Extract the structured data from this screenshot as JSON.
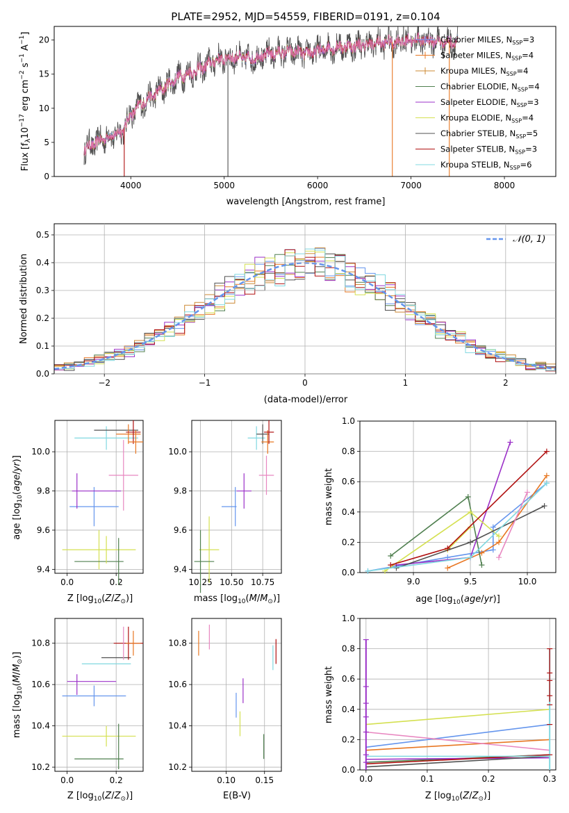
{
  "palette": [
    "#6495ed",
    "#e87722",
    "#cc8833",
    "#4f7f4f",
    "#9b30c8",
    "#d4e050",
    "#505050",
    "#b01010",
    "#80d8e0",
    "#e886c0"
  ],
  "chart_data": [
    {
      "id": "spectrum",
      "type": "line",
      "title": "PLATE=2952, MJD=54559, FIBERID=0191, z=0.104",
      "xlabel": "wavelength [Angstrom, rest frame]",
      "ylabel": "Flux [fλ10⁻¹⁷ erg cm⁻² s⁻¹ A⁻¹]",
      "xlim": [
        3180,
        8550
      ],
      "ylim": [
        0,
        22
      ],
      "xticks": [
        "4000",
        "5000",
        "6000",
        "7000",
        "8000"
      ],
      "yticks": [
        "0",
        "5",
        "10",
        "15",
        "20"
      ],
      "continuum": {
        "x": [
          3500,
          3700,
          3900,
          4000,
          4100,
          4300,
          4500,
          4700,
          4900,
          5100,
          5300,
          5500,
          5700,
          5900,
          6100,
          6300,
          6500,
          6700,
          6900,
          7100,
          7300,
          7500
        ],
        "y": [
          4.0,
          5.5,
          6.5,
          9,
          10.5,
          12.5,
          14.5,
          15.5,
          17,
          17.5,
          17.3,
          18,
          18.3,
          18,
          18.8,
          19,
          19.3,
          19.6,
          19.8,
          20,
          19.8,
          19.7
        ]
      },
      "spikes": [
        {
          "x": 3930,
          "y": 0
        },
        {
          "x": 5040,
          "y": 0
        },
        {
          "x": 6800,
          "y": 0
        },
        {
          "x": 7410,
          "y": 0
        },
        {
          "x": 6920,
          "y": 24
        },
        {
          "x": 7290,
          "y": 22
        }
      ],
      "legend": [
        "Chabrier MILES, N_SSP=3",
        "Salpeter MILES, N_SSP=4",
        "Kroupa MILES, N_SSP=4",
        "Chabrier ELODIE, N_SSP=4",
        "Salpeter ELODIE, N_SSP=3",
        "Kroupa ELODIE, N_SSP=4",
        "Chabrier STELIB, N_SSP=5",
        "Salpeter STELIB, N_SSP=3",
        "Kroupa STELIB, N_SSP=6"
      ]
    },
    {
      "id": "residuals",
      "type": "line",
      "xlabel": "(data-model)/error",
      "ylabel": "Normed distribution",
      "xlim": [
        -2.5,
        2.5
      ],
      "ylim": [
        0,
        0.54
      ],
      "xticks": [
        "−2",
        "−1",
        "0",
        "1",
        "2"
      ],
      "yticks": [
        "0.0",
        "0.1",
        "0.2",
        "0.3",
        "0.4",
        "0.5"
      ],
      "legend": "N(0,1)",
      "bin_width": 0.1
    },
    {
      "id": "age-Z",
      "type": "scatter",
      "xlabel": "Z [log₁₀(Z/Z⊙)]",
      "ylabel": "age  [log₁₀(age/yr)]",
      "xlim": [
        -0.05,
        0.31
      ],
      "ylim": [
        9.38,
        10.16
      ],
      "xticks": [
        "0.0",
        "0.2"
      ],
      "yticks": [
        "9.4",
        "9.6",
        "9.8",
        "10.0"
      ]
    },
    {
      "id": "age-mass",
      "type": "scatter",
      "xlabel": "mass [log₁₀(M/M⊙)]",
      "xlim": [
        10.18,
        10.9
      ],
      "ylim": [
        9.38,
        10.16
      ],
      "xticks": [
        "10.25",
        "10.50",
        "10.75"
      ],
      "yticks": [
        "9.4",
        "9.6",
        "9.8",
        "10.0"
      ]
    },
    {
      "id": "weight-age",
      "type": "line",
      "xlabel": "age  [log₁₀(age/yr)]",
      "ylabel": "mass weight",
      "xlim": [
        8.53,
        10.25
      ],
      "ylim": [
        0,
        1
      ],
      "xticks": [
        "9.0",
        "9.5",
        "10.0"
      ],
      "yticks": [
        "0.0",
        "0.2",
        "0.4",
        "0.6",
        "0.8",
        "1.0"
      ],
      "series": [
        {
          "x": [
            8.6,
            9.3,
            9.7,
            9.7,
            10.17
          ],
          "y": [
            0.01,
            0.1,
            0.15,
            0.3,
            0.59
          ]
        },
        {
          "x": [
            9.3,
            9.6,
            9.75,
            10.17
          ],
          "y": [
            0.03,
            0.13,
            0.2,
            0.64
          ]
        },
        {
          "x": [
            9.3,
            9.5
          ],
          "y": [
            0.15,
            0.3
          ]
        },
        {
          "x": [
            8.8,
            9.48,
            9.6
          ],
          "y": [
            0.11,
            0.5,
            0.05
          ]
        },
        {
          "x": [
            8.85,
            9.5,
            9.85
          ],
          "y": [
            0.05,
            0.1,
            0.86
          ]
        },
        {
          "x": [
            8.75,
            9.5,
            9.75
          ],
          "y": [
            0.01,
            0.4,
            0.24
          ]
        },
        {
          "x": [
            8.85,
            9.5,
            10.15
          ],
          "y": [
            0.03,
            0.2,
            0.44
          ]
        },
        {
          "x": [
            8.8,
            9.3,
            10.17
          ],
          "y": [
            0.05,
            0.16,
            0.8
          ]
        },
        {
          "x": [
            8.6,
            9.5,
            10.17
          ],
          "y": [
            0.01,
            0.1,
            0.59
          ]
        },
        {
          "x": [
            9.75,
            10.0
          ],
          "y": [
            0.1,
            0.53
          ]
        }
      ]
    },
    {
      "id": "mass-Z",
      "type": "scatter",
      "xlabel": "Z [log₁₀(Z/Z⊙)]",
      "ylabel": "mass [log₁₀(M/M⊙)]",
      "xlim": [
        -0.05,
        0.31
      ],
      "ylim": [
        10.18,
        10.92
      ],
      "xticks": [
        "0.0",
        "0.2"
      ],
      "yticks": [
        "10.2",
        "10.4",
        "10.6",
        "10.8"
      ]
    },
    {
      "id": "mass-EBV",
      "type": "scatter",
      "xlabel": "E(B-V)",
      "xlim": [
        0.055,
        0.172
      ],
      "ylim": [
        10.18,
        10.92
      ],
      "xticks": [
        "0.10",
        "0.15"
      ],
      "yticks": [
        "10.2",
        "10.4",
        "10.6",
        "10.8"
      ]
    },
    {
      "id": "weight-Z",
      "type": "line",
      "xlabel": "Z [log₁₀(Z/Z⊙)]",
      "ylabel": "mass weight",
      "xlim": [
        -0.01,
        0.31
      ],
      "ylim": [
        0,
        1
      ],
      "xticks": [
        "0.0",
        "0.1",
        "0.2",
        "0.3"
      ],
      "yticks": [
        "0.0",
        "0.2",
        "0.4",
        "0.6",
        "0.8",
        "1.0"
      ],
      "series": [
        {
          "x": [
            0,
            0.3
          ],
          "y": [
            0.15,
            0.3
          ]
        },
        {
          "x": [
            0,
            0.3
          ],
          "y": [
            0.13,
            0.2
          ]
        },
        {
          "x": [
            0,
            0.3
          ],
          "y": [
            0.25,
            0.13
          ]
        },
        {
          "x": [
            0,
            0.3
          ],
          "y": [
            0.05,
            0.1
          ]
        },
        {
          "x": [
            0,
            0.3
          ],
          "y": [
            0.07,
            0.08
          ]
        },
        {
          "x": [
            0,
            0.3
          ],
          "y": [
            0.3,
            0.4
          ]
        },
        {
          "x": [
            0,
            0.3
          ],
          "y": [
            0.02,
            0.09
          ]
        },
        {
          "x": [
            0,
            0.3
          ],
          "y": [
            0.04,
            0.1
          ]
        },
        {
          "x": [
            0,
            0.3
          ],
          "y": [
            0.09,
            0.09
          ]
        }
      ]
    }
  ]
}
